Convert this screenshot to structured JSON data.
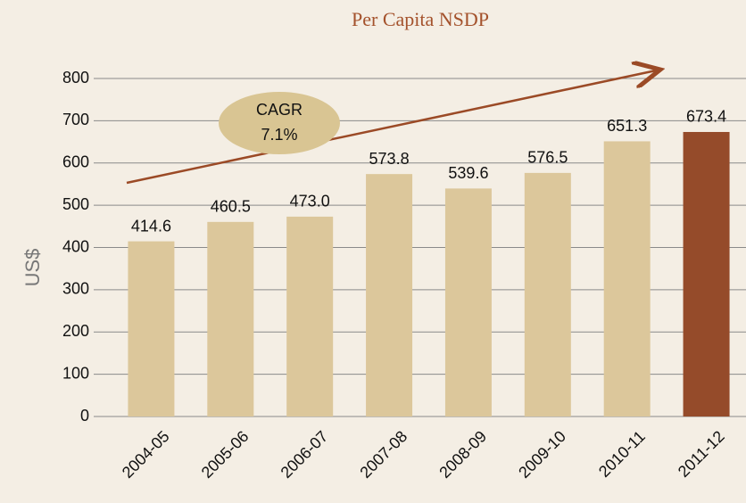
{
  "chart_data": {
    "type": "bar",
    "title": "Per Capita NSDP",
    "y_label": "US$",
    "categories": [
      "2004-05",
      "2005-06",
      "2006-07",
      "2007-08",
      "2008-09",
      "2009-10",
      "2010-11",
      "2011-12"
    ],
    "values": [
      414.6,
      460.5,
      473,
      573.8,
      539.6,
      576.5,
      651.3,
      673.4
    ],
    "value_labels": [
      "414.6",
      "460.5",
      "473.0",
      "573.8",
      "539.6",
      "576.5",
      "651.3",
      "673.4"
    ],
    "colors": [
      "#dcc79b",
      "#dcc79b",
      "#dcc79b",
      "#dcc79b",
      "#dcc79b",
      "#dcc79b",
      "#dcc79b",
      "#954b2a"
    ],
    "ylim": [
      0,
      800
    ],
    "yticks": [
      0,
      100,
      200,
      300,
      400,
      500,
      600,
      700,
      800
    ],
    "grid": true,
    "annotation": {
      "title": "CAGR",
      "text": "7.1%"
    }
  }
}
